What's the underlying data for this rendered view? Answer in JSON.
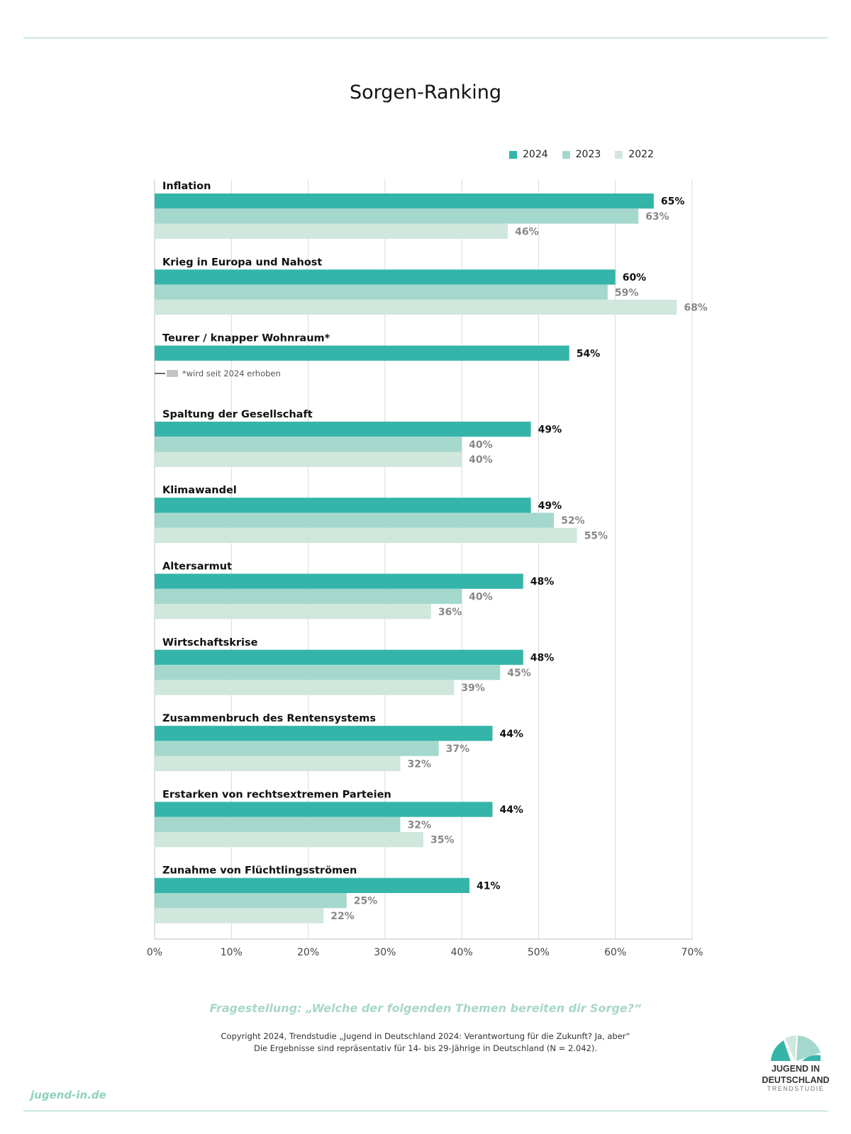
{
  "title": "Sorgen-Ranking",
  "colors": {
    "2024": "#35b5a9",
    "2023": "#a5d8cd",
    "2022": "#cfe7dc",
    "grid": "#d9d9d9",
    "na": "#c4c4c4"
  },
  "chart_data": {
    "type": "bar",
    "orientation": "horizontal",
    "title": "Sorgen-Ranking",
    "xlim": [
      0,
      70
    ],
    "xticks": [
      "0%",
      "10%",
      "20%",
      "30%",
      "40%",
      "50%",
      "60%",
      "70%"
    ],
    "categories": [
      "Inflation",
      "Krieg in Europa und Nahost",
      "Teurer / knapper Wohnraum*",
      "Spaltung der Gesellschaft",
      "Klimawandel",
      "Altersarmut",
      "Wirtschaftskrise",
      "Zusammenbruch des Rentensystems",
      "Erstarken von rechtsextremen Parteien",
      "Zunahme von Flüchtlingsströmen"
    ],
    "series": [
      {
        "name": "2024",
        "values": [
          65,
          60,
          54,
          49,
          49,
          48,
          48,
          44,
          44,
          41
        ]
      },
      {
        "name": "2023",
        "values": [
          63,
          59,
          null,
          40,
          52,
          40,
          45,
          37,
          32,
          25
        ]
      },
      {
        "name": "2022",
        "values": [
          46,
          68,
          null,
          40,
          55,
          36,
          39,
          32,
          35,
          22
        ]
      }
    ],
    "note": "*wird seit 2024 erhoben",
    "legend_position": "top-right",
    "grid": true
  },
  "footer": {
    "question": "Fragestellung: „Welche der folgenden Themen bereiten dir Sorge?“",
    "copyright_line1": "Copyright 2024, Trendstudie „Jugend in Deutschland 2024: Verantwortung für die Zukunft? Ja, aber“",
    "copyright_line2": "Die Ergebnisse sind repräsentativ für 14- bis 29-Jährige in Deutschland (N = 2.042).",
    "site": "jugend-in.de"
  },
  "logo": {
    "line1": "JUGEND IN",
    "line2": "DEUTSCHLAND",
    "line3": "TRENDSTUDIE"
  }
}
